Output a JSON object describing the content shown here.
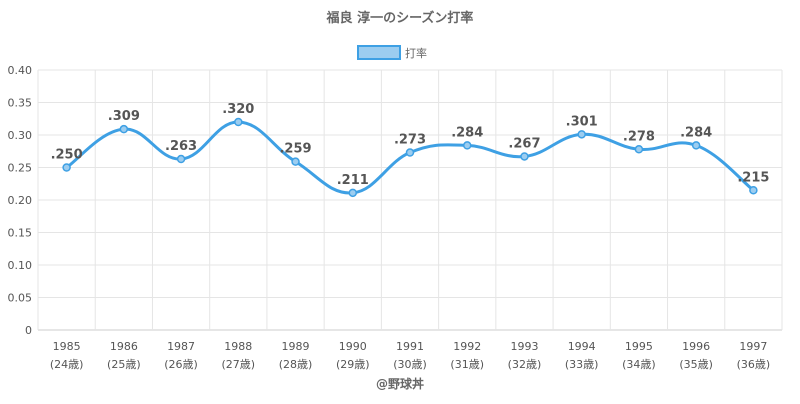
{
  "chart_data": {
    "type": "line",
    "title": "福良 淳一のシーズン打率",
    "categories": [
      "1985",
      "1986",
      "1987",
      "1988",
      "1989",
      "1990",
      "1991",
      "1992",
      "1993",
      "1994",
      "1995",
      "1996",
      "1997"
    ],
    "age_labels": [
      "(24歳)",
      "(25歳)",
      "(26歳)",
      "(27歳)",
      "(28歳)",
      "(29歳)",
      "(30歳)",
      "(31歳)",
      "(32歳)",
      "(33歳)",
      "(34歳)",
      "(35歳)",
      "(36歳)"
    ],
    "series": [
      {
        "name": "打率",
        "values": [
          0.25,
          0.309,
          0.263,
          0.32,
          0.259,
          0.211,
          0.273,
          0.284,
          0.267,
          0.301,
          0.278,
          0.284,
          0.215
        ],
        "data_labels": [
          ".250",
          ".309",
          ".263",
          ".320",
          ".259",
          ".211",
          ".273",
          ".284",
          ".267",
          ".301",
          ".278",
          ".284",
          ".215"
        ]
      }
    ],
    "ylim": [
      0,
      0.4
    ],
    "yticks": [
      "0",
      "0.05",
      "0.10",
      "0.15",
      "0.20",
      "0.25",
      "0.30",
      "0.35",
      "0.40"
    ],
    "grid": true,
    "legend_position": "top-center",
    "credit": "@野球丼",
    "colors": {
      "line": "#3ea0e4",
      "legend_fill": "#9ccdf0",
      "grid": "#e5e5e5",
      "title": "#666666",
      "label": "#555555"
    }
  }
}
